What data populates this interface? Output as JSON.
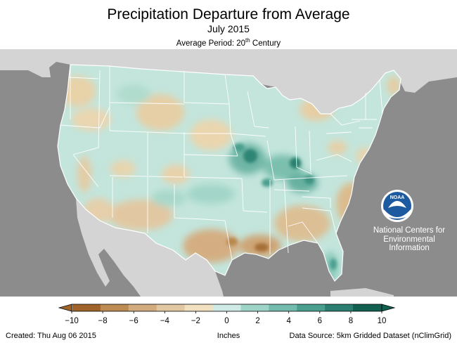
{
  "header": {
    "title": "Precipitation Departure from Average",
    "subtitle": "July 2015",
    "period_prefix": "Average Period: 20",
    "period_sup": "th",
    "period_suffix": " Century"
  },
  "logo": {
    "name": "NOAA",
    "caption_lines": [
      "National Centers for",
      "Environmental",
      "Information"
    ]
  },
  "legend": {
    "unit": "Inches",
    "ticks": [
      "−10",
      "−8",
      "−6",
      "−4",
      "−2",
      "0",
      "2",
      "4",
      "6",
      "8",
      "10"
    ],
    "colors": [
      "#a0642a",
      "#bd8c55",
      "#d2ac7e",
      "#e2c8a2",
      "#f0e0c0",
      "#cfeae4",
      "#9fd4c8",
      "#73bcad",
      "#4b9f8f",
      "#2c7f70",
      "#12604f"
    ]
  },
  "footer": {
    "created": "Created: Thu Aug 06 2015",
    "source": "Data Source: 5km Gridded Dataset (nClimGrid)"
  },
  "colors": {
    "ocean": "#8c8c8c",
    "land_outside": "#d4d4d4",
    "lakes": "#8c8c8c",
    "borders": "#ffffff",
    "noaa_blue": "#1e5aa0"
  }
}
